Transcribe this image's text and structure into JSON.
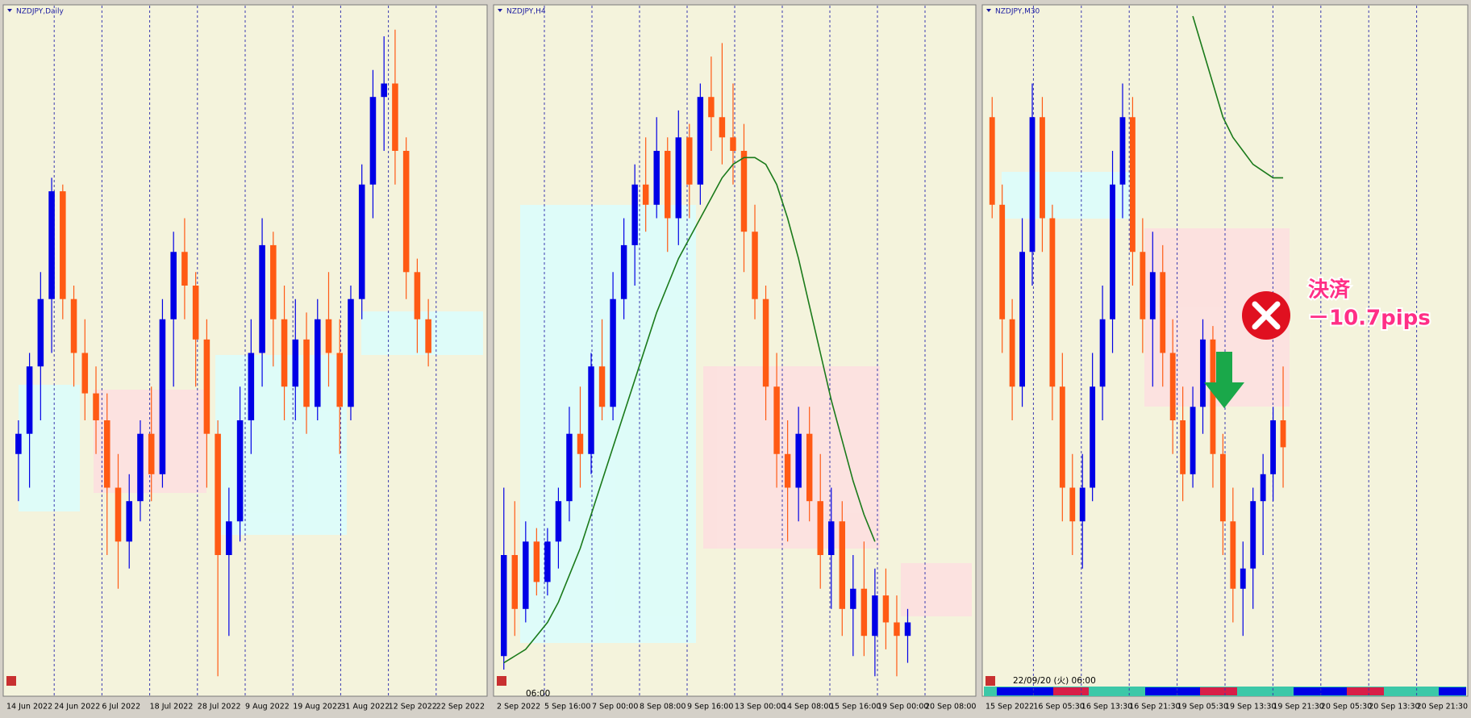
{
  "chart_data": [
    {
      "type": "candlestick",
      "title": "NZDJPY,Daily",
      "up_color": "#0000e6",
      "down_color": "#ff5a14",
      "ylim": [
        0,
        100
      ],
      "categories": [
        "14 Jun 2022",
        "24 Jun 2022",
        "6 Jul 2022",
        "18 Jul 2022",
        "28 Jul 2022",
        "9 Aug 2022",
        "19 Aug 2022",
        "31 Aug 2022",
        "12 Sep 2022",
        "22 Sep 2022"
      ],
      "candles": [
        [
          35,
          40,
          28,
          38
        ],
        [
          38,
          50,
          30,
          48
        ],
        [
          48,
          62,
          40,
          58
        ],
        [
          58,
          76,
          50,
          74
        ],
        [
          74,
          75,
          55,
          58
        ],
        [
          58,
          60,
          45,
          50
        ],
        [
          50,
          55,
          40,
          44
        ],
        [
          44,
          48,
          35,
          40
        ],
        [
          40,
          44,
          20,
          30
        ],
        [
          30,
          35,
          15,
          22
        ],
        [
          22,
          32,
          18,
          28
        ],
        [
          28,
          40,
          25,
          38
        ],
        [
          38,
          45,
          28,
          32
        ],
        [
          32,
          58,
          30,
          55
        ],
        [
          55,
          68,
          45,
          65
        ],
        [
          65,
          70,
          55,
          60
        ],
        [
          60,
          62,
          45,
          52
        ],
        [
          52,
          55,
          30,
          38
        ],
        [
          38,
          40,
          2,
          20
        ],
        [
          20,
          30,
          8,
          25
        ],
        [
          25,
          45,
          22,
          40
        ],
        [
          40,
          55,
          35,
          50
        ],
        [
          50,
          70,
          45,
          66
        ],
        [
          66,
          68,
          48,
          55
        ],
        [
          55,
          60,
          40,
          45
        ],
        [
          45,
          58,
          40,
          52
        ],
        [
          52,
          56,
          38,
          42
        ],
        [
          42,
          58,
          40,
          55
        ],
        [
          55,
          62,
          45,
          50
        ],
        [
          50,
          55,
          35,
          42
        ],
        [
          42,
          60,
          40,
          58
        ],
        [
          58,
          78,
          55,
          75
        ],
        [
          75,
          92,
          70,
          88
        ],
        [
          88,
          97,
          80,
          90
        ],
        [
          90,
          98,
          75,
          80
        ],
        [
          80,
          82,
          58,
          62
        ],
        [
          62,
          64,
          50,
          55
        ],
        [
          55,
          58,
          48,
          50
        ]
      ]
    },
    {
      "type": "candlestick",
      "title": "NZDJPY,H4",
      "up_color": "#0000e6",
      "down_color": "#ff5a14",
      "ylim": [
        0,
        100
      ],
      "ema_color": "#1a7a1a",
      "time_label": "06:00",
      "categories": [
        "2 Sep 2022",
        "5 Sep 16:00",
        "7 Sep 00:00",
        "8 Sep 08:00",
        "9 Sep 16:00",
        "13 Sep 00:00",
        "14 Sep 08:00",
        "15 Sep 16:00",
        "19 Sep 00:00",
        "20 Sep 08:00"
      ],
      "candles": [
        [
          5,
          30,
          3,
          20
        ],
        [
          20,
          28,
          8,
          12
        ],
        [
          12,
          25,
          10,
          22
        ],
        [
          22,
          24,
          14,
          16
        ],
        [
          16,
          24,
          14,
          22
        ],
        [
          22,
          30,
          18,
          28
        ],
        [
          28,
          42,
          25,
          38
        ],
        [
          38,
          45,
          30,
          35
        ],
        [
          35,
          50,
          32,
          48
        ],
        [
          48,
          55,
          40,
          42
        ],
        [
          42,
          62,
          40,
          58
        ],
        [
          58,
          70,
          55,
          66
        ],
        [
          66,
          78,
          60,
          75
        ],
        [
          75,
          82,
          68,
          72
        ],
        [
          72,
          85,
          70,
          80
        ],
        [
          80,
          82,
          65,
          70
        ],
        [
          70,
          86,
          66,
          82
        ],
        [
          82,
          84,
          70,
          75
        ],
        [
          75,
          90,
          72,
          88
        ],
        [
          88,
          94,
          80,
          85
        ],
        [
          85,
          96,
          78,
          82
        ],
        [
          82,
          90,
          75,
          80
        ],
        [
          80,
          84,
          62,
          68
        ],
        [
          68,
          72,
          55,
          58
        ],
        [
          58,
          60,
          40,
          45
        ],
        [
          45,
          50,
          30,
          35
        ],
        [
          35,
          40,
          22,
          30
        ],
        [
          30,
          42,
          25,
          38
        ],
        [
          38,
          42,
          25,
          28
        ],
        [
          28,
          35,
          15,
          20
        ],
        [
          20,
          30,
          12,
          25
        ],
        [
          25,
          28,
          8,
          12
        ],
        [
          12,
          20,
          5,
          15
        ],
        [
          15,
          22,
          5,
          8
        ],
        [
          8,
          18,
          2,
          14
        ],
        [
          14,
          18,
          6,
          10
        ],
        [
          10,
          14,
          2,
          8
        ],
        [
          8,
          12,
          4,
          10
        ]
      ],
      "ema": [
        4,
        5,
        6,
        8,
        10,
        13,
        17,
        21,
        26,
        31,
        36,
        41,
        46,
        51,
        56,
        60,
        64,
        67,
        70,
        73,
        76,
        78,
        79,
        79,
        78,
        75,
        70,
        64,
        57,
        50,
        43,
        37,
        31,
        26,
        22,
        null,
        null,
        null
      ]
    },
    {
      "type": "candlestick",
      "title": "NZDJPY,M30",
      "up_color": "#0000e6",
      "down_color": "#ff5a14",
      "ylim": [
        0,
        100
      ],
      "ema_color": "#1a7a1a",
      "time_label": "22/09/20 (火) 06:00",
      "categories": [
        "15 Sep 2022",
        "16 Sep 05:30",
        "16 Sep 13:30",
        "16 Sep 21:30",
        "19 Sep 05:30",
        "19 Sep 13:30",
        "19 Sep 21:30",
        "20 Sep 05:30",
        "20 Sep 13:30",
        "20 Sep 21:30"
      ],
      "candles": [
        [
          85,
          88,
          70,
          72
        ],
        [
          72,
          75,
          50,
          55
        ],
        [
          55,
          58,
          40,
          45
        ],
        [
          45,
          70,
          42,
          65
        ],
        [
          65,
          90,
          60,
          85
        ],
        [
          85,
          88,
          65,
          70
        ],
        [
          70,
          72,
          40,
          45
        ],
        [
          45,
          50,
          25,
          30
        ],
        [
          30,
          35,
          20,
          25
        ],
        [
          25,
          35,
          18,
          30
        ],
        [
          30,
          50,
          28,
          45
        ],
        [
          45,
          60,
          40,
          55
        ],
        [
          55,
          80,
          50,
          75
        ],
        [
          75,
          90,
          70,
          85
        ],
        [
          85,
          88,
          60,
          65
        ],
        [
          65,
          70,
          50,
          55
        ],
        [
          55,
          68,
          45,
          62
        ],
        [
          62,
          66,
          45,
          50
        ],
        [
          50,
          55,
          35,
          40
        ],
        [
          40,
          45,
          28,
          32
        ],
        [
          32,
          45,
          30,
          42
        ],
        [
          42,
          55,
          38,
          52
        ],
        [
          52,
          54,
          30,
          35
        ],
        [
          35,
          38,
          20,
          25
        ],
        [
          25,
          30,
          10,
          15
        ],
        [
          15,
          22,
          8,
          18
        ],
        [
          18,
          30,
          12,
          28
        ],
        [
          28,
          35,
          20,
          32
        ],
        [
          32,
          42,
          28,
          40
        ],
        [
          40,
          48,
          30,
          36
        ]
      ],
      "ema": [
        null,
        null,
        null,
        null,
        null,
        null,
        null,
        null,
        null,
        null,
        null,
        null,
        null,
        null,
        null,
        null,
        null,
        null,
        null,
        null,
        100,
        95,
        90,
        85,
        82,
        80,
        78,
        77,
        76,
        76
      ],
      "annotation": [
        "決済",
        "－10.7pips"
      ]
    }
  ]
}
